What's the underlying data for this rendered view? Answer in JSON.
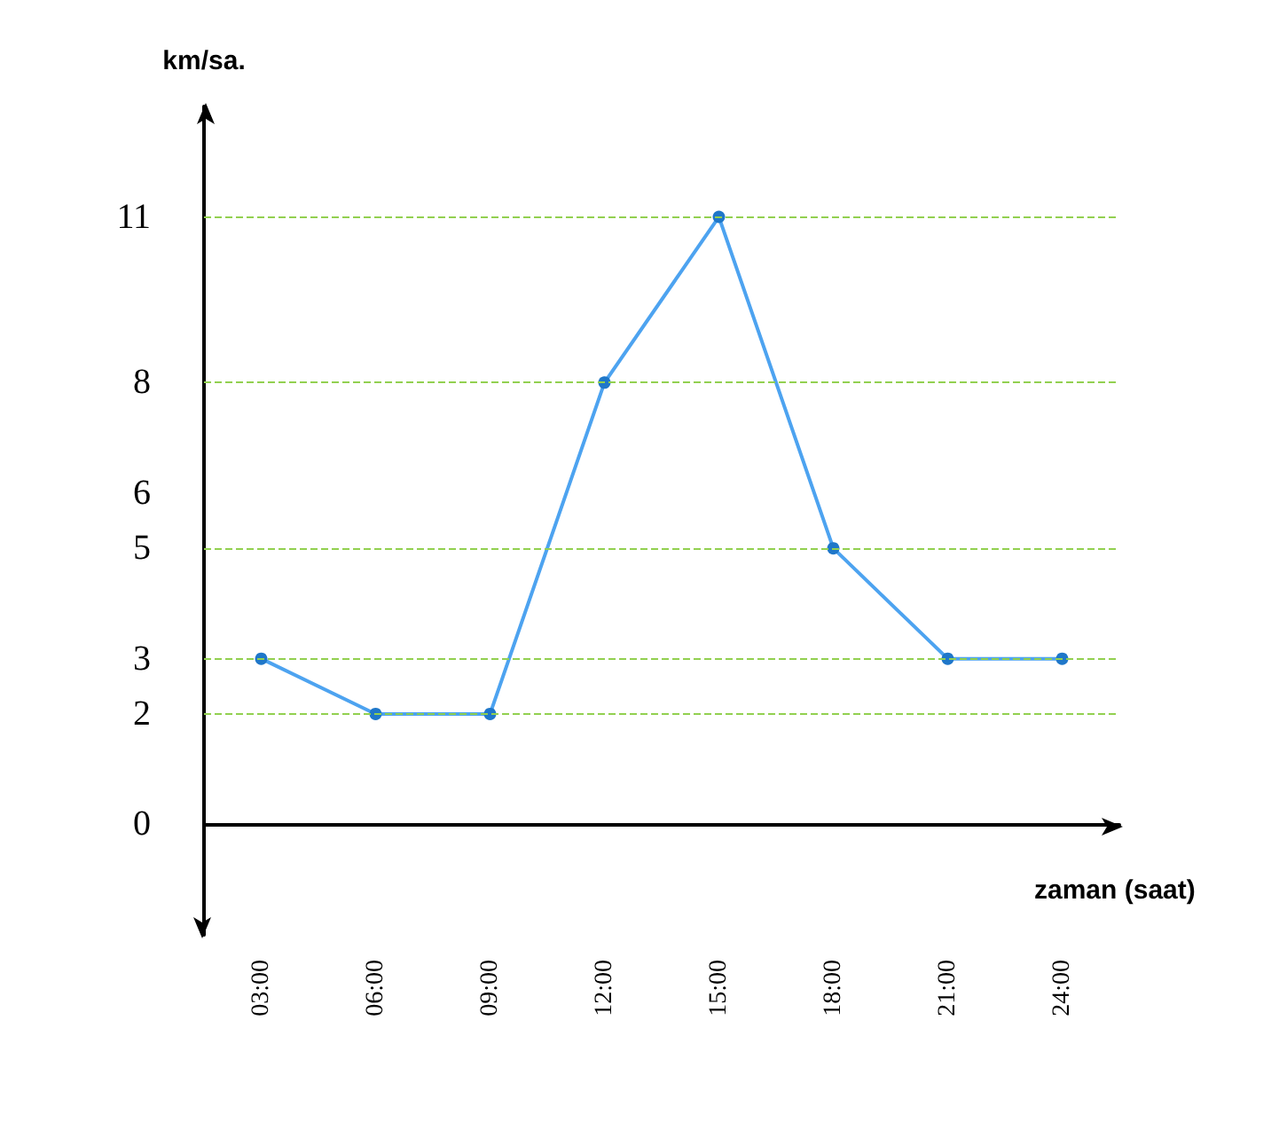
{
  "chart_data": {
    "type": "line",
    "xlabel": "zaman (saat)",
    "ylabel": "km/sa.",
    "categories": [
      "03:00",
      "06:00",
      "09:00",
      "12:00",
      "15:00",
      "18:00",
      "21:00",
      "24:00"
    ],
    "series": [
      {
        "color": "#4da3f0",
        "values": [
          3,
          2,
          2,
          8,
          11,
          5,
          3,
          3
        ]
      }
    ],
    "ylim": [
      -2,
      13
    ],
    "yticks": [
      0,
      2,
      3,
      5,
      6,
      8,
      11
    ],
    "ref_lines": [
      {
        "axis": "y",
        "value": 2,
        "color": "#92d050",
        "line_style": "dashed"
      },
      {
        "axis": "y",
        "value": 3,
        "color": "#92d050",
        "line_style": "dashed"
      },
      {
        "axis": "y",
        "value": 5,
        "color": "#92d050",
        "line_style": "dashed"
      },
      {
        "axis": "y",
        "value": 8,
        "color": "#92d050",
        "line_style": "dashed"
      },
      {
        "axis": "y",
        "value": 11,
        "color": "#92d050",
        "line_style": "dashed"
      }
    ],
    "grid": false,
    "marker": "circle",
    "line_style": "solid"
  }
}
